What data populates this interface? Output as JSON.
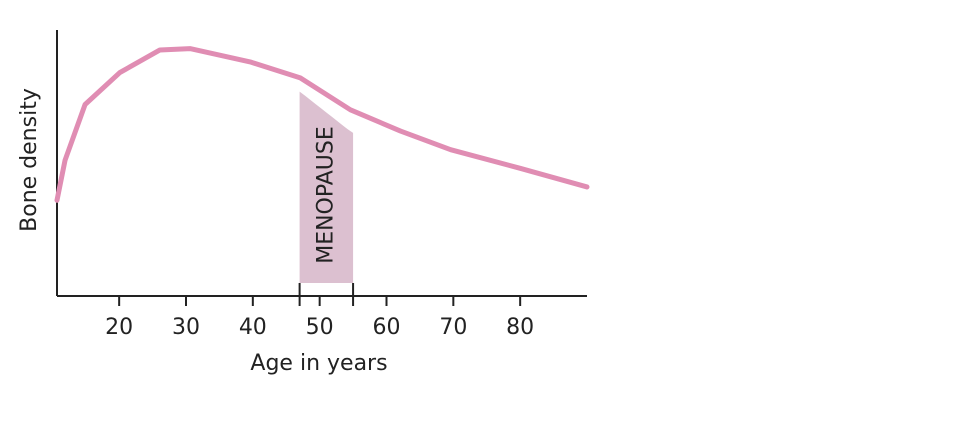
{
  "chart_data": {
    "type": "line",
    "x_label": "Age in years",
    "y_label": "Bone density",
    "x": [
      10.7,
      11.9,
      14.9,
      20.1,
      26.1,
      30.6,
      39.6,
      47.1,
      54.6,
      62.1,
      69.6,
      80,
      90
    ],
    "values": [
      36,
      51,
      72,
      84,
      92.5,
      93,
      88,
      82,
      70,
      62,
      55,
      48,
      41
    ],
    "color": "#e08db3",
    "xlim": [
      10.7,
      90
    ],
    "xticks": [
      20,
      30,
      40,
      50,
      60,
      70,
      80
    ],
    "ylim": [
      0,
      100
    ],
    "band": {
      "label": "MENOPAUSE",
      "start": 47,
      "end": 55,
      "color": "#dcc0d0"
    }
  }
}
